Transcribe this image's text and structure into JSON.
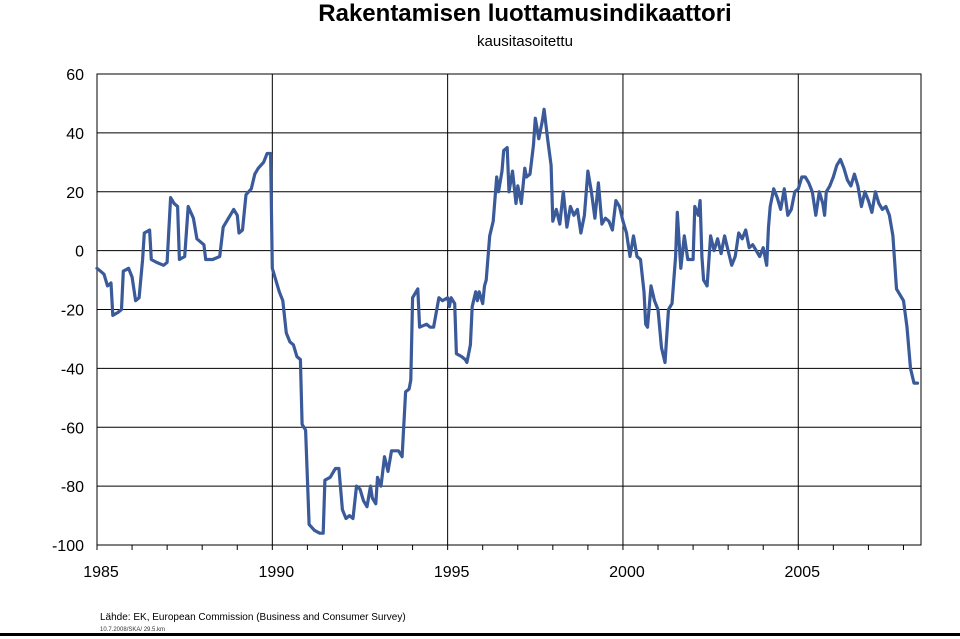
{
  "chart_data": {
    "type": "line",
    "title": "Rakentamisen luottamusindikaattori",
    "subtitle": "kausitasoitettu",
    "xlabel": "",
    "ylabel": "",
    "xlim": [
      1985,
      2008.5
    ],
    "ylim": [
      -100,
      60
    ],
    "yticks": [
      -100,
      -80,
      -60,
      -40,
      -20,
      0,
      20,
      40,
      60
    ],
    "xticks": [
      1985,
      1990,
      1995,
      2000,
      2005
    ],
    "xgrid_years": [
      1990,
      1995,
      2000,
      2005
    ],
    "grid": true,
    "legend": "none",
    "line_color": "#3a5a9a",
    "series": [
      {
        "points": [
          [
            1985.0,
            -6
          ],
          [
            1985.1,
            -7
          ],
          [
            1985.2,
            -8
          ],
          [
            1985.3,
            -12
          ],
          [
            1985.4,
            -11
          ],
          [
            1985.45,
            -22
          ],
          [
            1985.6,
            -21
          ],
          [
            1985.7,
            -20
          ],
          [
            1985.75,
            -7
          ],
          [
            1985.9,
            -6
          ],
          [
            1986.0,
            -9
          ],
          [
            1986.1,
            -17
          ],
          [
            1986.2,
            -16
          ],
          [
            1986.3,
            -3
          ],
          [
            1986.35,
            6
          ],
          [
            1986.5,
            7
          ],
          [
            1986.55,
            -3
          ],
          [
            1986.7,
            -4
          ],
          [
            1986.9,
            -5
          ],
          [
            1987.0,
            -4
          ],
          [
            1987.1,
            18
          ],
          [
            1987.2,
            16
          ],
          [
            1987.3,
            15
          ],
          [
            1987.35,
            -3
          ],
          [
            1987.5,
            -2
          ],
          [
            1987.6,
            15
          ],
          [
            1987.75,
            11
          ],
          [
            1987.85,
            4
          ],
          [
            1987.95,
            3
          ],
          [
            1988.05,
            2
          ],
          [
            1988.1,
            -3
          ],
          [
            1988.3,
            -3
          ],
          [
            1988.5,
            -2
          ],
          [
            1988.6,
            8
          ],
          [
            1988.8,
            12
          ],
          [
            1988.9,
            14
          ],
          [
            1989.0,
            12
          ],
          [
            1989.05,
            6
          ],
          [
            1989.15,
            7
          ],
          [
            1989.25,
            19
          ],
          [
            1989.4,
            21
          ],
          [
            1989.5,
            26
          ],
          [
            1989.6,
            28
          ],
          [
            1989.75,
            30
          ],
          [
            1989.85,
            33
          ],
          [
            1989.95,
            33
          ],
          [
            1990.0,
            -6
          ],
          [
            1990.1,
            -10
          ],
          [
            1990.2,
            -14
          ],
          [
            1990.3,
            -17
          ],
          [
            1990.4,
            -28
          ],
          [
            1990.5,
            -31
          ],
          [
            1990.6,
            -32
          ],
          [
            1990.7,
            -36
          ],
          [
            1990.8,
            -37
          ],
          [
            1990.85,
            -59
          ],
          [
            1990.95,
            -61
          ],
          [
            1991.05,
            -93
          ],
          [
            1991.2,
            -95
          ],
          [
            1991.35,
            -96
          ],
          [
            1991.45,
            -96
          ],
          [
            1991.5,
            -78
          ],
          [
            1991.65,
            -77
          ],
          [
            1991.8,
            -74
          ],
          [
            1991.9,
            -74
          ],
          [
            1992.0,
            -88
          ],
          [
            1992.1,
            -91
          ],
          [
            1992.2,
            -90
          ],
          [
            1992.3,
            -91
          ],
          [
            1992.4,
            -80
          ],
          [
            1992.5,
            -81
          ],
          [
            1992.6,
            -85
          ],
          [
            1992.7,
            -87
          ],
          [
            1992.8,
            -80
          ],
          [
            1992.85,
            -84
          ],
          [
            1992.95,
            -86
          ],
          [
            1993.0,
            -77
          ],
          [
            1993.1,
            -80
          ],
          [
            1993.2,
            -70
          ],
          [
            1993.3,
            -75
          ],
          [
            1993.4,
            -68
          ],
          [
            1993.5,
            -68
          ],
          [
            1993.6,
            -68
          ],
          [
            1993.7,
            -70
          ],
          [
            1993.8,
            -48
          ],
          [
            1993.9,
            -47
          ],
          [
            1993.95,
            -44
          ],
          [
            1994.0,
            -16
          ],
          [
            1994.1,
            -14
          ],
          [
            1994.15,
            -13
          ],
          [
            1994.2,
            -26
          ],
          [
            1994.4,
            -25
          ],
          [
            1994.5,
            -26
          ],
          [
            1994.6,
            -26
          ],
          [
            1994.75,
            -16
          ],
          [
            1994.85,
            -17
          ],
          [
            1995.0,
            -16
          ],
          [
            1995.05,
            -19
          ],
          [
            1995.1,
            -16
          ],
          [
            1995.2,
            -18
          ],
          [
            1995.25,
            -35
          ],
          [
            1995.4,
            -36
          ],
          [
            1995.5,
            -37
          ],
          [
            1995.55,
            -38
          ],
          [
            1995.65,
            -32
          ],
          [
            1995.7,
            -19
          ],
          [
            1995.8,
            -14
          ],
          [
            1995.85,
            -17
          ],
          [
            1995.9,
            -14
          ],
          [
            1996.0,
            -18
          ],
          [
            1996.05,
            -12
          ],
          [
            1996.1,
            -10
          ],
          [
            1996.2,
            5
          ],
          [
            1996.3,
            10
          ],
          [
            1996.4,
            25
          ],
          [
            1996.45,
            20
          ],
          [
            1996.55,
            27
          ],
          [
            1996.6,
            34
          ],
          [
            1996.7,
            35
          ],
          [
            1996.75,
            20
          ],
          [
            1996.85,
            27
          ],
          [
            1996.95,
            16
          ],
          [
            1997.0,
            22
          ],
          [
            1997.1,
            16
          ],
          [
            1997.2,
            28
          ],
          [
            1997.25,
            25
          ],
          [
            1997.35,
            26
          ],
          [
            1997.45,
            36
          ],
          [
            1997.5,
            45
          ],
          [
            1997.6,
            38
          ],
          [
            1997.7,
            44
          ],
          [
            1997.75,
            48
          ],
          [
            1997.85,
            38
          ],
          [
            1997.95,
            29
          ],
          [
            1998.0,
            10
          ],
          [
            1998.1,
            14
          ],
          [
            1998.2,
            9
          ],
          [
            1998.3,
            20
          ],
          [
            1998.4,
            8
          ],
          [
            1998.5,
            15
          ],
          [
            1998.6,
            12
          ],
          [
            1998.7,
            14
          ],
          [
            1998.8,
            6
          ],
          [
            1998.9,
            12
          ],
          [
            1999.0,
            27
          ],
          [
            1999.1,
            20
          ],
          [
            1999.2,
            11
          ],
          [
            1999.3,
            23
          ],
          [
            1999.4,
            9
          ],
          [
            1999.5,
            11
          ],
          [
            1999.6,
            10
          ],
          [
            1999.7,
            7
          ],
          [
            1999.8,
            17
          ],
          [
            1999.9,
            15
          ],
          [
            2000.0,
            10
          ],
          [
            2000.1,
            6
          ],
          [
            2000.2,
            -2
          ],
          [
            2000.3,
            5
          ],
          [
            2000.4,
            -2
          ],
          [
            2000.5,
            -3
          ],
          [
            2000.6,
            -14
          ],
          [
            2000.65,
            -25
          ],
          [
            2000.7,
            -26
          ],
          [
            2000.8,
            -12
          ],
          [
            2000.9,
            -17
          ],
          [
            2001.0,
            -20
          ],
          [
            2001.1,
            -33
          ],
          [
            2001.2,
            -38
          ],
          [
            2001.3,
            -20
          ],
          [
            2001.4,
            -18
          ],
          [
            2001.5,
            -2
          ],
          [
            2001.55,
            13
          ],
          [
            2001.65,
            -6
          ],
          [
            2001.75,
            5
          ],
          [
            2001.85,
            -3
          ],
          [
            2002.0,
            -3
          ],
          [
            2002.05,
            15
          ],
          [
            2002.15,
            12
          ],
          [
            2002.2,
            17
          ],
          [
            2002.25,
            -2
          ],
          [
            2002.3,
            -10
          ],
          [
            2002.4,
            -12
          ],
          [
            2002.5,
            5
          ],
          [
            2002.6,
            0
          ],
          [
            2002.7,
            4
          ],
          [
            2002.8,
            -1
          ],
          [
            2002.9,
            5
          ],
          [
            2003.0,
            0
          ],
          [
            2003.1,
            -5
          ],
          [
            2003.2,
            -2
          ],
          [
            2003.3,
            6
          ],
          [
            2003.4,
            4
          ],
          [
            2003.5,
            7
          ],
          [
            2003.6,
            1
          ],
          [
            2003.7,
            2
          ],
          [
            2003.8,
            0
          ],
          [
            2003.9,
            -2
          ],
          [
            2004.0,
            1
          ],
          [
            2004.1,
            -5
          ],
          [
            2004.15,
            8
          ],
          [
            2004.2,
            15
          ],
          [
            2004.3,
            21
          ],
          [
            2004.4,
            18
          ],
          [
            2004.5,
            14
          ],
          [
            2004.6,
            21
          ],
          [
            2004.7,
            12
          ],
          [
            2004.8,
            14
          ],
          [
            2004.9,
            20
          ],
          [
            2005.0,
            21
          ],
          [
            2005.1,
            25
          ],
          [
            2005.2,
            25
          ],
          [
            2005.3,
            23
          ],
          [
            2005.4,
            20
          ],
          [
            2005.5,
            12
          ],
          [
            2005.6,
            20
          ],
          [
            2005.7,
            16
          ],
          [
            2005.75,
            12
          ],
          [
            2005.8,
            20
          ],
          [
            2005.9,
            22
          ],
          [
            2006.0,
            25
          ],
          [
            2006.1,
            29
          ],
          [
            2006.2,
            31
          ],
          [
            2006.3,
            28
          ],
          [
            2006.4,
            24
          ],
          [
            2006.5,
            22
          ],
          [
            2006.6,
            26
          ],
          [
            2006.7,
            22
          ],
          [
            2006.8,
            15
          ],
          [
            2006.9,
            20
          ],
          [
            2007.0,
            17
          ],
          [
            2007.1,
            13
          ],
          [
            2007.2,
            20
          ],
          [
            2007.3,
            16
          ],
          [
            2007.4,
            14
          ],
          [
            2007.5,
            15
          ],
          [
            2007.6,
            12
          ],
          [
            2007.7,
            5
          ],
          [
            2007.8,
            -13
          ],
          [
            2007.9,
            -15
          ],
          [
            2008.0,
            -17
          ],
          [
            2008.1,
            -26
          ],
          [
            2008.2,
            -40
          ],
          [
            2008.3,
            -45
          ],
          [
            2008.4,
            -45
          ]
        ]
      }
    ]
  },
  "footer": {
    "source": "Lähde: EK, European Commission (Business and Consumer Survey)",
    "stamp": "10.7.2008/SKA/ 29.5.km"
  }
}
